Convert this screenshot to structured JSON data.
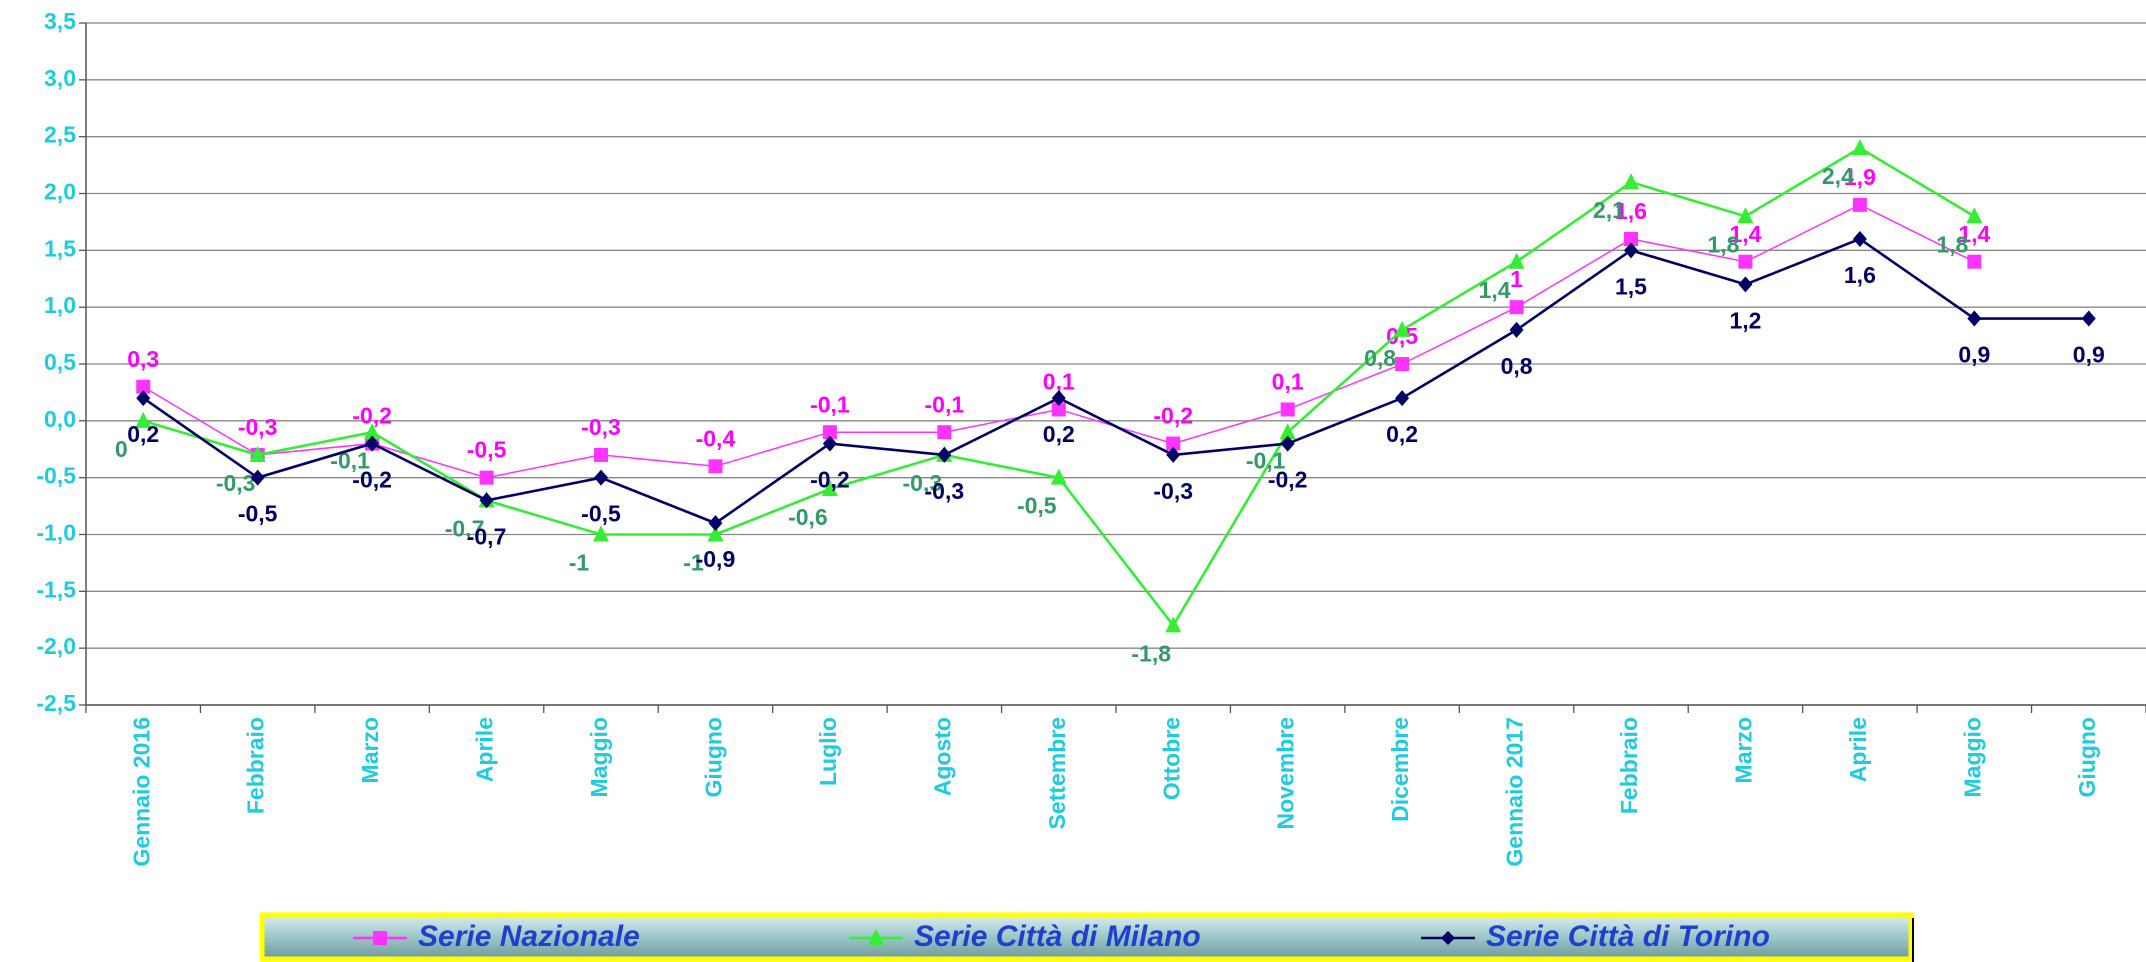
{
  "chart_data": {
    "type": "line",
    "categories": [
      "Gennaio 2016",
      "Febbraio",
      "Marzo",
      "Aprile",
      "Maggio",
      "Giugno",
      "Luglio",
      "Agosto",
      "Settembre",
      "Ottobre",
      "Novembre",
      "Dicembre",
      "Gennaio 2017",
      "Febbraio",
      "Marzo",
      "Aprile",
      "Maggio",
      "Giugno"
    ],
    "ylim": [
      -2.5,
      3.5
    ],
    "yticks": [
      {
        "value": -2.5,
        "label": "-2,5"
      },
      {
        "value": -2,
        "label": "-2,0"
      },
      {
        "value": -1.5,
        "label": "-1,5"
      },
      {
        "value": -1,
        "label": "-1,0"
      },
      {
        "value": -0.5,
        "label": "-0,5"
      },
      {
        "value": 0,
        "label": "0,0"
      },
      {
        "value": 0.5,
        "label": "0,5"
      },
      {
        "value": 1,
        "label": "1,0"
      },
      {
        "value": 1.5,
        "label": "1,5"
      },
      {
        "value": 2,
        "label": "2,0"
      },
      {
        "value": 2.5,
        "label": "2,5"
      },
      {
        "value": 3,
        "label": "3,0"
      },
      {
        "value": 3.5,
        "label": "3,5"
      }
    ],
    "grid": true,
    "series": [
      {
        "name": "Serie Nazionale",
        "color": "#ff33ff",
        "label_color": "#ff00ff",
        "marker": "square",
        "values": [
          0.3,
          -0.3,
          -0.2,
          -0.5,
          -0.3,
          -0.4,
          -0.1,
          -0.1,
          0.1,
          -0.2,
          0.1,
          0.5,
          1,
          1.6,
          1.4,
          1.9,
          1.4,
          null
        ],
        "value_labels": [
          "0,3",
          "-0,3",
          "-0,2",
          "-0,5",
          "-0,3",
          "-0,4",
          "-0,1",
          "-0,1",
          "0,1",
          "-0,2",
          "0,1",
          "0,5",
          "1",
          "1,6",
          "1,4",
          "1,9",
          "1,4",
          null
        ]
      },
      {
        "name": "Serie Città di Milano",
        "color": "#33ee33",
        "label_color": "#339966",
        "marker": "triangle",
        "values": [
          0,
          -0.3,
          -0.1,
          -0.7,
          -1,
          -1,
          -0.6,
          -0.3,
          -0.5,
          -1.8,
          -0.1,
          0.8,
          1.4,
          2.1,
          1.8,
          2.4,
          1.8,
          null
        ],
        "value_labels": [
          "0",
          "-0,3",
          "-0,1",
          "-0,7",
          "-1",
          "-1",
          "-0,6",
          "-0,3",
          "-0,5",
          "-1,8",
          "-0,1",
          "0,8",
          "1,4",
          "2,1",
          "1,8",
          "2,4",
          "1,8",
          null
        ]
      },
      {
        "name": "Serie  Città di Torino",
        "color": "#000066",
        "label_color": "#000066",
        "marker": "diamond",
        "values": [
          0.2,
          -0.5,
          -0.2,
          -0.7,
          -0.5,
          -0.9,
          -0.2,
          -0.3,
          0.2,
          -0.3,
          -0.2,
          0.2,
          0.8,
          1.5,
          1.2,
          1.6,
          0.9,
          0.9
        ],
        "value_labels": [
          "0,2",
          "-0,5",
          "-0,2",
          "-0,7",
          "-0,5",
          "-0,9",
          "-0,2",
          "-0,3",
          "0,2",
          "-0,3",
          "-0,2",
          "0,2",
          "0,8",
          "1,5",
          "1,2",
          "1,6",
          "0,9",
          "0,9"
        ]
      }
    ]
  }
}
